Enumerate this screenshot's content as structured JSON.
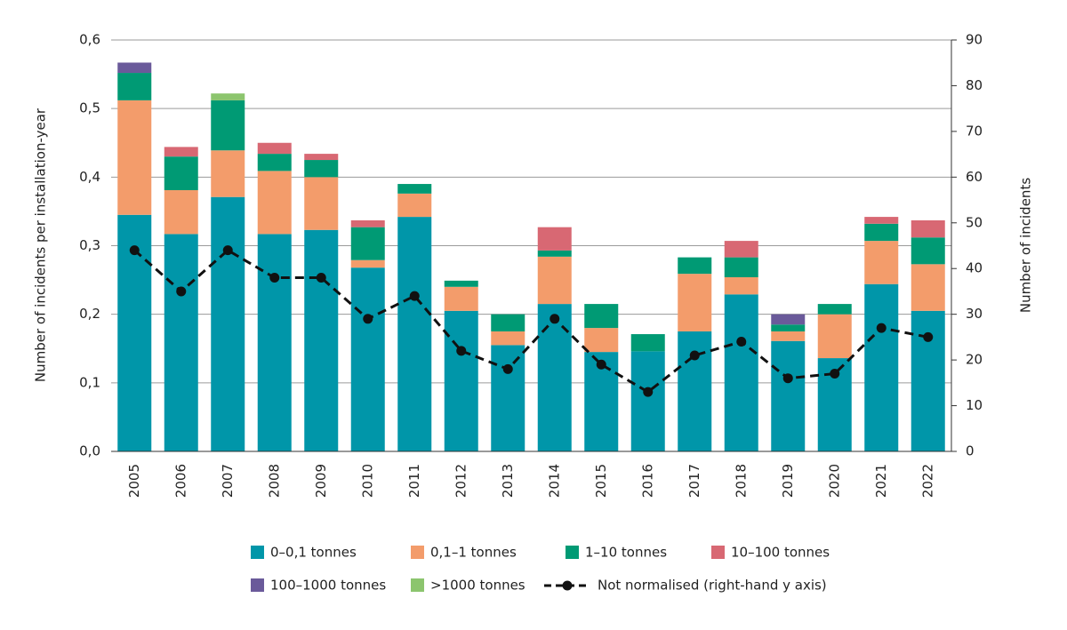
{
  "chart_data": {
    "type": "bar",
    "stacked": true,
    "categories": [
      "2005",
      "2006",
      "2007",
      "2008",
      "2009",
      "2010",
      "2011",
      "2012",
      "2013",
      "2014",
      "2015",
      "2016",
      "2017",
      "2018",
      "2019",
      "2020",
      "2021",
      "2022"
    ],
    "series": [
      {
        "name": "0–0,1 tonnes",
        "color": "#0096a9",
        "values": [
          0.345,
          0.317,
          0.371,
          0.317,
          0.323,
          0.268,
          0.342,
          0.205,
          0.155,
          0.215,
          0.145,
          0.146,
          0.175,
          0.229,
          0.161,
          0.136,
          0.244,
          0.205
        ]
      },
      {
        "name": "0,1–1 tonnes",
        "color": "#f39c6b",
        "values": [
          0.167,
          0.064,
          0.068,
          0.092,
          0.077,
          0.011,
          0.034,
          0.035,
          0.02,
          0.069,
          0.035,
          0,
          0.084,
          0.025,
          0.014,
          0.064,
          0.063,
          0.068
        ]
      },
      {
        "name": "1–10 tonnes",
        "color": "#009a74",
        "values": [
          0.04,
          0.049,
          0.073,
          0.025,
          0.025,
          0.048,
          0.014,
          0.009,
          0.025,
          0.009,
          0.035,
          0.025,
          0.024,
          0.029,
          0.01,
          0.015,
          0.025,
          0.039
        ]
      },
      {
        "name": "10–100 tonnes",
        "color": "#d86873",
        "values": [
          0,
          0.014,
          0,
          0.016,
          0.009,
          0.01,
          0,
          0,
          0,
          0.034,
          0,
          0,
          0,
          0.024,
          0,
          0,
          0.01,
          0.025
        ]
      },
      {
        "name": "100–1000 tonnes",
        "color": "#6a5a9a",
        "values": [
          0.015,
          0,
          0,
          0,
          0,
          0,
          0,
          0,
          0,
          0,
          0,
          0,
          0,
          0,
          0.015,
          0,
          0,
          0
        ]
      },
      {
        "name": ">1000 tonnes",
        "color": "#8cc56e",
        "values": [
          0,
          0,
          0.01,
          0,
          0,
          0,
          0,
          0,
          0,
          0,
          0,
          0,
          0,
          0,
          0,
          0,
          0,
          0
        ]
      },
      {
        "name": "Not normalised (right-hand y axis)",
        "color": "#111111",
        "type": "line",
        "line_style": "dashed",
        "axis": "y2",
        "values": [
          44,
          35,
          44,
          38,
          38,
          29,
          34,
          22,
          18,
          29,
          19,
          13,
          21,
          24,
          16,
          17,
          27,
          25
        ]
      }
    ],
    "ylabel": "Number of incidents per installation-year",
    "y2label": "Number of incidents",
    "ylim": [
      0,
      0.6
    ],
    "yticks": [
      {
        "value": 0,
        "label": "0,0"
      },
      {
        "value": 0.1,
        "label": "0,1"
      },
      {
        "value": 0.2,
        "label": "0,2"
      },
      {
        "value": 0.3,
        "label": "0,3"
      },
      {
        "value": 0.4,
        "label": "0,4"
      },
      {
        "value": 0.5,
        "label": "0,5"
      },
      {
        "value": 0.6,
        "label": "0,6"
      }
    ],
    "y2lim": [
      0,
      90
    ],
    "y2ticks": [
      0,
      10,
      20,
      30,
      40,
      50,
      60,
      70,
      80,
      90
    ],
    "grid": true,
    "legend": "bottom"
  }
}
